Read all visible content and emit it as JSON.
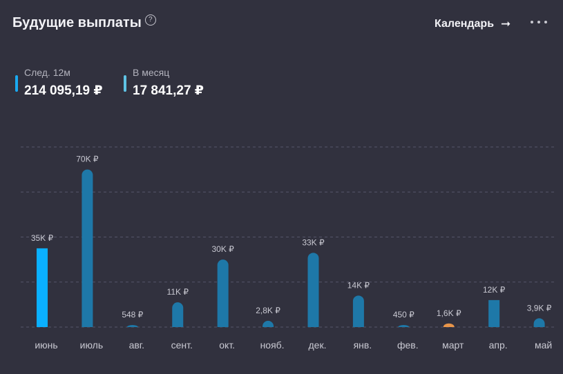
{
  "header": {
    "title": "Будущие выплаты",
    "help_glyph": "?",
    "calendar_label": "Календарь",
    "arrow_glyph": "➞"
  },
  "stats": [
    {
      "label": "След. 12м",
      "value": "214 095,19 ₽",
      "color": "#1aa9f0"
    },
    {
      "label": "В месяц",
      "value": "17 841,27 ₽",
      "color": "#5fc3e4"
    }
  ],
  "chart_data": {
    "type": "bar",
    "categories": [
      "июнь",
      "июль",
      "авг.",
      "сент.",
      "окт.",
      "нояб.",
      "дек.",
      "янв.",
      "фев.",
      "март",
      "апр.",
      "май"
    ],
    "values": [
      35000,
      70000,
      548,
      11000,
      30000,
      2800,
      33000,
      14000,
      450,
      1600,
      12000,
      3900
    ],
    "data_labels": [
      "35K ₽",
      "70K ₽",
      "548 ₽",
      "11K ₽",
      "30K ₽",
      "2,8K ₽",
      "33K ₽",
      "14K ₽",
      "450 ₽",
      "1,6K ₽",
      "12K ₽",
      "3,9K ₽"
    ],
    "ylim": [
      0,
      80000
    ],
    "grid": true,
    "colors": {
      "highlight": "#0ab0ff",
      "default": "#1e78a8",
      "march": "#e8954a",
      "grid": "#55556a",
      "label": "#c9c9d2"
    }
  }
}
